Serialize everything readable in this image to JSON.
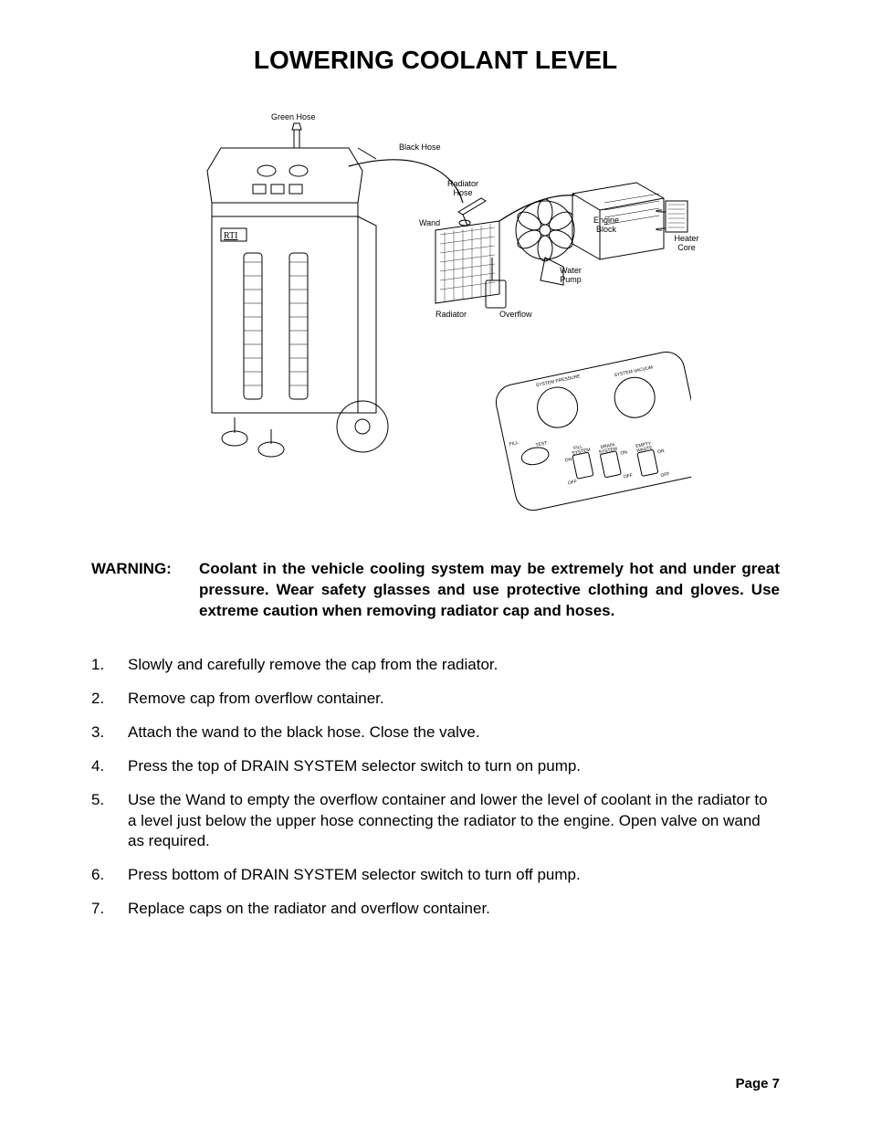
{
  "title": "LOWERING COOLANT LEVEL",
  "diagram": {
    "labels": {
      "green_hose": "Green Hose",
      "black_hose": "Black Hose",
      "radiator_hose": "Radiator\nHose",
      "engine_block": "Engine\nBlock",
      "heater_core": "Heater\nCore",
      "wand": "Wand",
      "water_pump": "Water\nPump",
      "overflow": "Overflow",
      "radiator": "Radiator",
      "rti_logo": "RTI"
    },
    "control_panel": {
      "system_pressure": "SYSTEM PRESSURE",
      "system_vacuum": "SYSTEM VACUUM",
      "test": "TEST",
      "fill": "FILL",
      "fill_system": "FILL\nSYSTEM",
      "drain_system": "DRAIN\nSYSTEM",
      "empty_waste": "EMPTY\nWASTE",
      "on": "ON",
      "off": "OFF"
    },
    "colors": {
      "stroke": "#000000",
      "fill": "#ffffff"
    }
  },
  "warning": {
    "label": "WARNING:",
    "text": "Coolant in the vehicle cooling system may be extremely hot and under great pressure. Wear safety glasses and use protective clothing and gloves. Use extreme caution when removing radiator cap and hoses."
  },
  "steps": [
    {
      "n": "1.",
      "t": "Slowly and carefully remove the cap from the radiator."
    },
    {
      "n": "2.",
      "t": "Remove cap from overflow container."
    },
    {
      "n": "3.",
      "t": "Attach the wand to the black hose. Close the valve."
    },
    {
      "n": "4.",
      "t": "Press the top of DRAIN SYSTEM selector switch to turn on pump."
    },
    {
      "n": "5.",
      "t": "Use the Wand to empty the overflow container and lower the level of coolant in the radiator to a level just below the upper hose connecting the radiator to the engine. Open valve on wand as required."
    },
    {
      "n": "6.",
      "t": "Press bottom of DRAIN SYSTEM selector switch to turn off pump."
    },
    {
      "n": "7.",
      "t": "Replace caps on the radiator and overflow container."
    }
  ],
  "page_number": "Page 7"
}
